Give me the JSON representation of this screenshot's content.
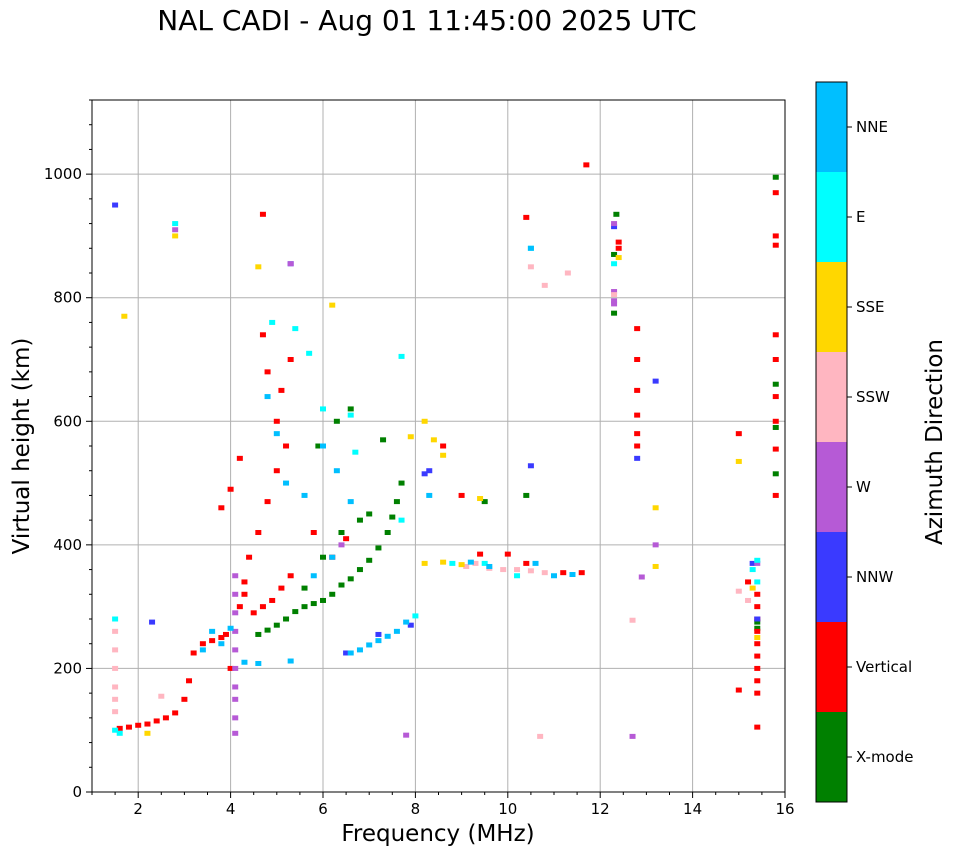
{
  "chart_data": {
    "type": "scatter",
    "title": "NAL CADI - Aug 01 11:45:00 2025 UTC",
    "xlabel": "Frequency (MHz)",
    "ylabel": "Virtual height (km)",
    "xlim": [
      1,
      16
    ],
    "ylim": [
      0,
      1120
    ],
    "xticks": [
      2,
      4,
      6,
      8,
      10,
      12,
      14,
      16
    ],
    "yticks": [
      0,
      200,
      400,
      600,
      800,
      1000
    ],
    "grid": true,
    "colorbar": {
      "label": "Azimuth Direction",
      "categories": [
        {
          "name": "X-mode",
          "color": "#008000"
        },
        {
          "name": "Vertical",
          "color": "#ff0000"
        },
        {
          "name": "NNW",
          "color": "#3a3aff"
        },
        {
          "name": "W",
          "color": "#b65ad6"
        },
        {
          "name": "SSW",
          "color": "#ffb6c1"
        },
        {
          "name": "SSE",
          "color": "#ffd700"
        },
        {
          "name": "E",
          "color": "#00ffff"
        },
        {
          "name": "NNE",
          "color": "#00bfff"
        }
      ]
    },
    "series": [
      {
        "name": "X-mode",
        "points": [
          [
            4.6,
            255
          ],
          [
            4.8,
            262
          ],
          [
            5.0,
            270
          ],
          [
            5.2,
            280
          ],
          [
            5.4,
            292
          ],
          [
            5.6,
            300
          ],
          [
            5.8,
            305
          ],
          [
            6.0,
            310
          ],
          [
            6.2,
            320
          ],
          [
            6.4,
            335
          ],
          [
            6.6,
            345
          ],
          [
            6.8,
            360
          ],
          [
            7.0,
            375
          ],
          [
            7.2,
            395
          ],
          [
            7.4,
            420
          ],
          [
            7.5,
            445
          ],
          [
            7.6,
            470
          ],
          [
            7.7,
            500
          ],
          [
            5.6,
            330
          ],
          [
            6.0,
            380
          ],
          [
            6.4,
            420
          ],
          [
            6.8,
            440
          ],
          [
            7.0,
            450
          ],
          [
            5.9,
            560
          ],
          [
            6.3,
            600
          ],
          [
            6.6,
            620
          ],
          [
            7.3,
            570
          ],
          [
            10.4,
            480
          ],
          [
            9.5,
            470
          ],
          [
            12.35,
            935
          ],
          [
            12.3,
            870
          ],
          [
            12.3,
            775
          ],
          [
            15.8,
            995
          ],
          [
            15.8,
            660
          ],
          [
            15.8,
            590
          ],
          [
            15.8,
            515
          ],
          [
            15.4,
            275
          ],
          [
            15.4,
            265
          ]
        ]
      },
      {
        "name": "Vertical",
        "points": [
          [
            1.6,
            103
          ],
          [
            1.8,
            105
          ],
          [
            2.0,
            108
          ],
          [
            2.2,
            110
          ],
          [
            2.4,
            115
          ],
          [
            2.6,
            120
          ],
          [
            2.8,
            128
          ],
          [
            3.0,
            150
          ],
          [
            3.1,
            180
          ],
          [
            3.2,
            225
          ],
          [
            3.4,
            240
          ],
          [
            3.6,
            245
          ],
          [
            3.8,
            250
          ],
          [
            3.9,
            255
          ],
          [
            4.2,
            300
          ],
          [
            4.3,
            320
          ],
          [
            4.3,
            340
          ],
          [
            4.5,
            290
          ],
          [
            4.7,
            300
          ],
          [
            4.9,
            310
          ],
          [
            5.1,
            330
          ],
          [
            5.3,
            350
          ],
          [
            4.4,
            380
          ],
          [
            4.6,
            420
          ],
          [
            4.8,
            470
          ],
          [
            5.0,
            520
          ],
          [
            5.2,
            560
          ],
          [
            5.0,
            600
          ],
          [
            5.1,
            650
          ],
          [
            5.3,
            700
          ],
          [
            4.7,
            740
          ],
          [
            4.8,
            680
          ],
          [
            4.2,
            540
          ],
          [
            3.8,
            460
          ],
          [
            4.0,
            490
          ],
          [
            4.0,
            200
          ],
          [
            5.8,
            420
          ],
          [
            6.2,
            380
          ],
          [
            6.5,
            410
          ],
          [
            9.0,
            480
          ],
          [
            9.4,
            385
          ],
          [
            10.0,
            385
          ],
          [
            10.4,
            930
          ],
          [
            10.4,
            370
          ],
          [
            11.2,
            355
          ],
          [
            11.6,
            355
          ],
          [
            11.7,
            1015
          ],
          [
            4.7,
            935
          ],
          [
            12.4,
            880
          ],
          [
            12.4,
            890
          ],
          [
            12.8,
            750
          ],
          [
            12.8,
            700
          ],
          [
            12.8,
            650
          ],
          [
            12.8,
            610
          ],
          [
            12.8,
            580
          ],
          [
            12.8,
            560
          ],
          [
            15.0,
            580
          ],
          [
            15.0,
            165
          ],
          [
            15.2,
            340
          ],
          [
            15.4,
            320
          ],
          [
            15.4,
            300
          ],
          [
            15.4,
            280
          ],
          [
            15.4,
            260
          ],
          [
            15.4,
            240
          ],
          [
            15.4,
            220
          ],
          [
            15.4,
            200
          ],
          [
            15.4,
            180
          ],
          [
            15.4,
            160
          ],
          [
            15.4,
            105
          ],
          [
            15.8,
            970
          ],
          [
            15.8,
            885
          ],
          [
            15.8,
            900
          ],
          [
            15.8,
            740
          ],
          [
            15.8,
            700
          ],
          [
            15.8,
            640
          ],
          [
            15.8,
            600
          ],
          [
            15.8,
            555
          ],
          [
            15.8,
            480
          ],
          [
            8.6,
            560
          ]
        ]
      },
      {
        "name": "NNW",
        "points": [
          [
            1.5,
            950
          ],
          [
            2.3,
            275
          ],
          [
            5.3,
            855
          ],
          [
            6.5,
            225
          ],
          [
            7.2,
            255
          ],
          [
            7.9,
            270
          ],
          [
            8.2,
            515
          ],
          [
            8.3,
            520
          ],
          [
            10.5,
            528
          ],
          [
            13.2,
            665
          ],
          [
            12.8,
            540
          ],
          [
            15.4,
            280
          ],
          [
            15.3,
            370
          ],
          [
            12.3,
            915
          ]
        ]
      },
      {
        "name": "W",
        "points": [
          [
            4.1,
            350
          ],
          [
            4.1,
            320
          ],
          [
            4.1,
            290
          ],
          [
            4.1,
            260
          ],
          [
            4.1,
            230
          ],
          [
            4.1,
            200
          ],
          [
            4.1,
            170
          ],
          [
            4.1,
            150
          ],
          [
            4.1,
            120
          ],
          [
            4.1,
            95
          ],
          [
            2.8,
            910
          ],
          [
            5.3,
            855
          ],
          [
            6.4,
            400
          ],
          [
            7.8,
            92
          ],
          [
            12.3,
            810
          ],
          [
            12.3,
            795
          ],
          [
            12.3,
            790
          ],
          [
            12.3,
            920
          ],
          [
            12.7,
            90
          ],
          [
            12.9,
            348
          ],
          [
            13.2,
            400
          ],
          [
            15.4,
            370
          ]
        ]
      },
      {
        "name": "SSW",
        "points": [
          [
            1.5,
            260
          ],
          [
            1.5,
            230
          ],
          [
            1.5,
            200
          ],
          [
            1.5,
            170
          ],
          [
            1.5,
            150
          ],
          [
            1.5,
            130
          ],
          [
            2.5,
            155
          ],
          [
            9.1,
            365
          ],
          [
            9.3,
            370
          ],
          [
            9.6,
            362
          ],
          [
            9.9,
            360
          ],
          [
            10.2,
            360
          ],
          [
            10.5,
            358
          ],
          [
            10.8,
            355
          ],
          [
            10.7,
            90
          ],
          [
            10.5,
            850
          ],
          [
            10.8,
            820
          ],
          [
            11.3,
            840
          ],
          [
            12.3,
            805
          ],
          [
            12.7,
            278
          ],
          [
            15.0,
            325
          ],
          [
            15.2,
            310
          ]
        ]
      },
      {
        "name": "SSE",
        "points": [
          [
            1.7,
            770
          ],
          [
            2.8,
            900
          ],
          [
            4.6,
            850
          ],
          [
            6.2,
            788
          ],
          [
            7.9,
            575
          ],
          [
            8.2,
            600
          ],
          [
            8.4,
            570
          ],
          [
            8.6,
            545
          ],
          [
            8.2,
            370
          ],
          [
            8.6,
            372
          ],
          [
            9.0,
            368
          ],
          [
            9.4,
            475
          ],
          [
            12.4,
            865
          ],
          [
            13.2,
            460
          ],
          [
            13.2,
            365
          ],
          [
            15.0,
            535
          ],
          [
            15.3,
            330
          ],
          [
            15.4,
            250
          ],
          [
            2.2,
            95
          ]
        ]
      },
      {
        "name": "E",
        "points": [
          [
            1.5,
            280
          ],
          [
            1.5,
            100
          ],
          [
            1.6,
            95
          ],
          [
            2.8,
            920
          ],
          [
            4.9,
            760
          ],
          [
            5.4,
            750
          ],
          [
            5.7,
            710
          ],
          [
            6.0,
            620
          ],
          [
            6.6,
            610
          ],
          [
            6.7,
            550
          ],
          [
            7.7,
            705
          ],
          [
            7.7,
            440
          ],
          [
            8.0,
            285
          ],
          [
            8.8,
            370
          ],
          [
            9.5,
            370
          ],
          [
            10.2,
            350
          ],
          [
            10.5,
            880
          ],
          [
            12.3,
            855
          ],
          [
            15.4,
            375
          ],
          [
            15.3,
            360
          ],
          [
            15.4,
            340
          ]
        ]
      },
      {
        "name": "NNE",
        "points": [
          [
            3.4,
            230
          ],
          [
            3.6,
            260
          ],
          [
            3.8,
            240
          ],
          [
            4.0,
            265
          ],
          [
            4.3,
            210
          ],
          [
            4.6,
            208
          ],
          [
            5.3,
            212
          ],
          [
            6.6,
            225
          ],
          [
            6.8,
            230
          ],
          [
            7.0,
            238
          ],
          [
            7.2,
            245
          ],
          [
            7.4,
            252
          ],
          [
            7.6,
            260
          ],
          [
            7.8,
            275
          ],
          [
            4.8,
            640
          ],
          [
            5.0,
            580
          ],
          [
            5.2,
            500
          ],
          [
            5.6,
            480
          ],
          [
            6.0,
            560
          ],
          [
            6.3,
            520
          ],
          [
            6.6,
            470
          ],
          [
            6.2,
            380
          ],
          [
            5.8,
            350
          ],
          [
            8.3,
            480
          ],
          [
            9.2,
            372
          ],
          [
            9.6,
            365
          ],
          [
            10.6,
            370
          ],
          [
            11.0,
            350
          ],
          [
            11.4,
            352
          ],
          [
            10.5,
            880
          ]
        ]
      }
    ]
  }
}
